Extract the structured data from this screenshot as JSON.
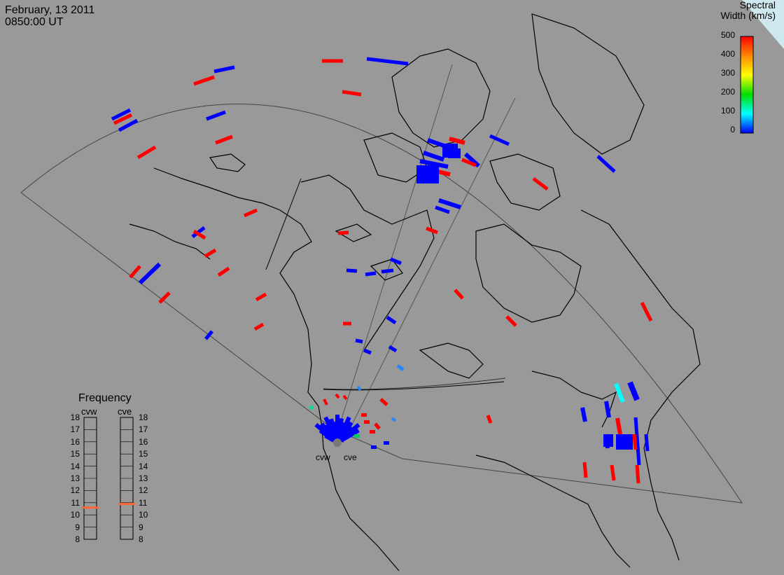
{
  "header": {
    "date": "February, 13 2011",
    "time": "0850:00 UT"
  },
  "colorbar": {
    "title_line1": "Spectral",
    "title_line2": "Width (km/s)",
    "ticks": [
      "500",
      "400",
      "300",
      "200",
      "100",
      "0"
    ],
    "colors": [
      "#ff0000",
      "#ff8800",
      "#ffff00",
      "#00dd00",
      "#00ffff",
      "#0000ff"
    ]
  },
  "frequency_panel": {
    "title": "Frequency",
    "radars": [
      {
        "name": "cvw",
        "value_mhz": 10.6
      },
      {
        "name": "cve",
        "value_mhz": 10.9
      }
    ],
    "ticks": [
      "18",
      "17",
      "16",
      "15",
      "14",
      "13",
      "12",
      "11",
      "10",
      "9",
      "8"
    ],
    "range": [
      8,
      18
    ]
  },
  "radar_labels": {
    "west": "cvw",
    "east": "cve"
  },
  "colors": {
    "background": "#999999",
    "red": "#ff0000",
    "blue": "#0000ff",
    "cyan": "#00ffff",
    "frequency_marker": "#ff6633"
  }
}
